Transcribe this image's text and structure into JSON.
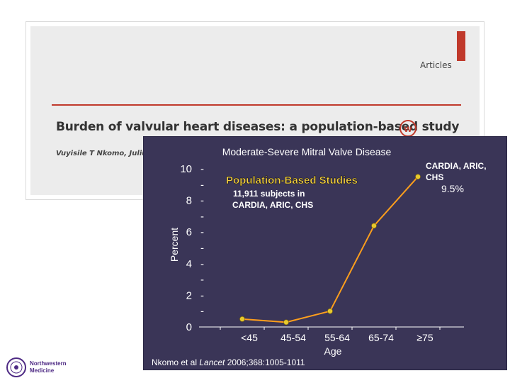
{
  "article": {
    "section": "Articles",
    "title": "Burden of valvular heart diseases: a population-based study",
    "authors": "Vuyisile T Nkomo, Julius M Ga",
    "journal_icon_glyph": "@",
    "accent_color": "#c0392b"
  },
  "chart_data": {
    "type": "line",
    "title": "Moderate-Severe Mitral Valve Disease",
    "xlabel": "Age",
    "ylabel": "Percent",
    "categories": [
      "<45",
      "45-54",
      "55-64",
      "65-74",
      "≥75"
    ],
    "series": [
      {
        "values": [
          0.5,
          0.3,
          1.0,
          6.4,
          9.5
        ]
      }
    ],
    "y_ticks": [
      "0",
      "2",
      "4",
      "6",
      "8",
      "10"
    ],
    "ylim": [
      0,
      10
    ],
    "grid": false,
    "line_color": "#ff9f1c",
    "marker_color": "#e6c92e",
    "annotations": {
      "heading": "Population-Based Studies",
      "subtitle_line1": "11,911 subjects in",
      "subtitle_line2": "CARDIA, ARIC, CHS",
      "last_point_label_line1": "CARDIA, ARIC,",
      "last_point_label_line2": "CHS",
      "last_point_value": "9.5%"
    },
    "heading_color": "#f5d142"
  },
  "citation": {
    "prefix": "Nkomo et al ",
    "journal": "Lancet",
    "suffix": " 2006;368:1005-1011"
  },
  "logo": {
    "line1": "Northwestern",
    "line2": "Medicine"
  }
}
